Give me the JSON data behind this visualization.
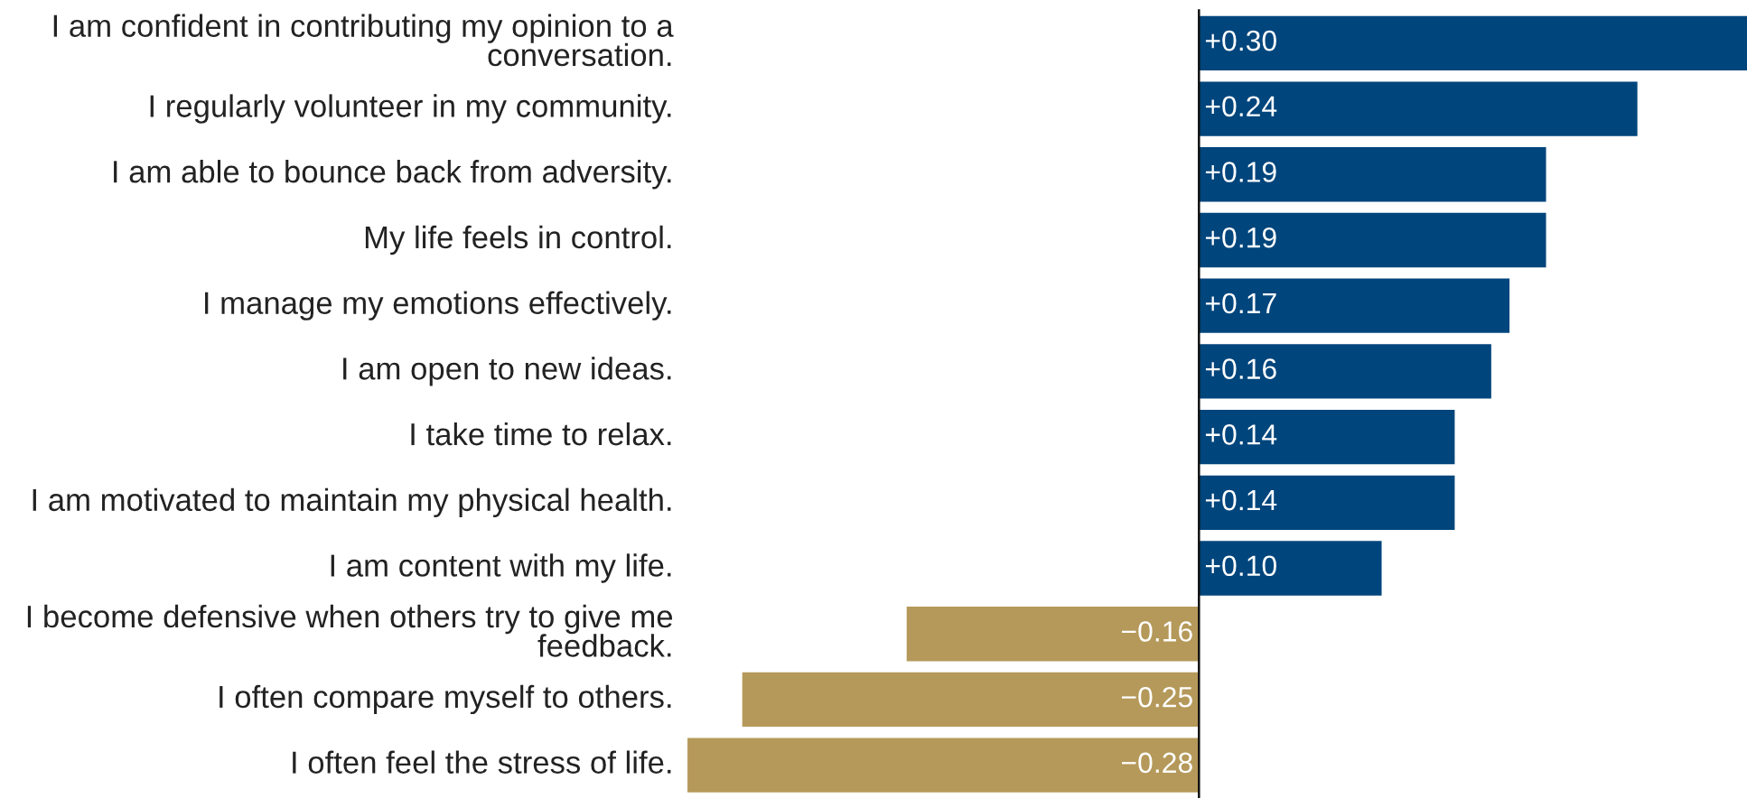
{
  "chart_data": {
    "type": "bar",
    "orientation": "horizontal",
    "categories": [
      "I am confident in contributing my opinion to a conversation.",
      "I regularly volunteer in my community.",
      "I am able to bounce back from adversity.",
      "My life feels in control.",
      "I manage my emotions effectively.",
      "I am open to new ideas.",
      "I take time to relax.",
      "I am motivated to maintain my physical health.",
      "I am content with my life.",
      "I become defensive when others try to give me feedback.",
      "I often compare myself to others.",
      "I often feel the stress of life."
    ],
    "values": [
      0.3,
      0.24,
      0.19,
      0.19,
      0.17,
      0.16,
      0.14,
      0.14,
      0.1,
      -0.16,
      -0.25,
      -0.28
    ],
    "value_labels": [
      "+0.30",
      "+0.24",
      "+0.19",
      "+0.19",
      "+0.17",
      "+0.16",
      "+0.14",
      "+0.14",
      "+0.10",
      "−0.16",
      "−0.25",
      "−0.28"
    ],
    "colors": [
      "#00457c",
      "#00457c",
      "#00457c",
      "#00457c",
      "#00457c",
      "#00457c",
      "#00457c",
      "#00457c",
      "#00457c",
      "#b5995a",
      "#b5995a",
      "#b5995a"
    ],
    "legend": false
  }
}
